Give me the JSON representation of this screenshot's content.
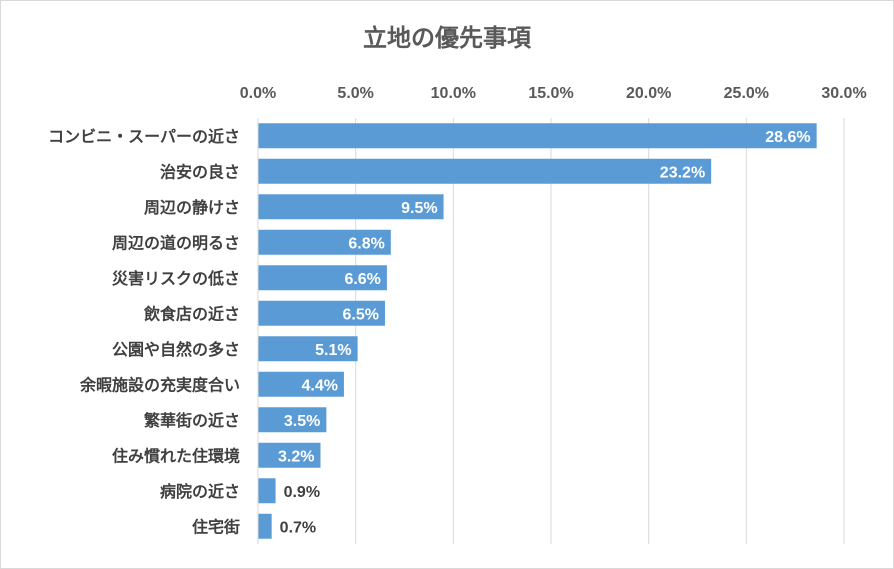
{
  "chart_data": {
    "type": "bar",
    "orientation": "horizontal",
    "title": "立地の優先事項",
    "xlim": [
      0,
      30
    ],
    "x_ticks": [
      "0.0%",
      "5.0%",
      "10.0%",
      "15.0%",
      "20.0%",
      "25.0%",
      "30.0%"
    ],
    "x_axis_position": "top",
    "grid": true,
    "bar_color": "#5B9BD5",
    "categories": [
      "コンビニ・スーパーの近さ",
      "治安の良さ",
      "周辺の静けさ",
      "周辺の道の明るさ",
      "災害リスクの低さ",
      "飲食店の近さ",
      "公園や自然の多さ",
      "余暇施設の充実度合い",
      "繁華街の近さ",
      "住み慣れた住環境",
      "病院の近さ",
      "住宅街"
    ],
    "values": [
      28.6,
      23.2,
      9.5,
      6.8,
      6.6,
      6.5,
      5.1,
      4.4,
      3.5,
      3.2,
      0.9,
      0.7
    ],
    "data_labels": [
      "28.6%",
      "23.2%",
      "9.5%",
      "6.8%",
      "6.6%",
      "6.5%",
      "5.1%",
      "4.4%",
      "3.5%",
      "3.2%",
      "0.9%",
      "0.7%"
    ]
  }
}
